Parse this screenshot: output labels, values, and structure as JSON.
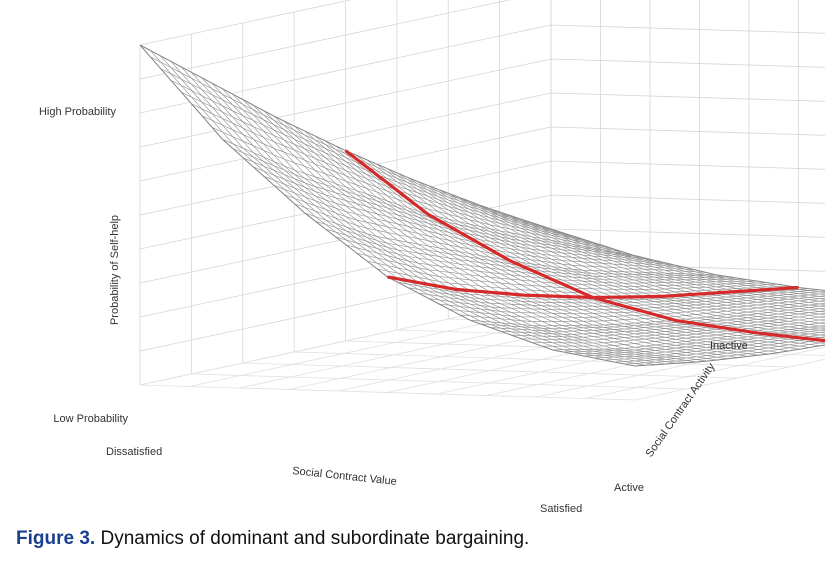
{
  "chart_data": {
    "type": "surface",
    "z_label": "Probability of Self-help",
    "z_ticks": [
      "High Probability",
      "Low Probability"
    ],
    "x_label": "Social Contract Value",
    "x_ticks": [
      "Dissatisfied",
      "Satisfied"
    ],
    "y_label": "Social Contract Activity",
    "y_ticks": [
      "Inactive",
      "Active"
    ],
    "grid": true,
    "surface_z": [
      [
        1.0,
        0.73,
        0.52,
        0.34,
        0.22,
        0.14,
        0.1
      ],
      [
        0.85,
        0.6,
        0.41,
        0.26,
        0.16,
        0.1,
        0.07
      ],
      [
        0.7,
        0.49,
        0.33,
        0.2,
        0.12,
        0.08,
        0.05
      ],
      [
        0.56,
        0.38,
        0.25,
        0.15,
        0.09,
        0.06,
        0.04
      ],
      [
        0.43,
        0.29,
        0.18,
        0.11,
        0.07,
        0.04,
        0.03
      ],
      [
        0.31,
        0.21,
        0.13,
        0.08,
        0.05,
        0.03,
        0.02
      ],
      [
        0.2,
        0.13,
        0.08,
        0.05,
        0.03,
        0.02,
        0.01
      ]
    ],
    "highlight_lines": [
      {
        "axis": "Social Contract Value",
        "at": "midpoint",
        "color": "#d42a2a"
      },
      {
        "axis": "Social Contract Activity",
        "at": "midpoint",
        "color": "#d42a2a"
      }
    ]
  },
  "caption": {
    "label": "Figure 3.",
    "text": "Dynamics of dominant and subordinate bargaining."
  }
}
